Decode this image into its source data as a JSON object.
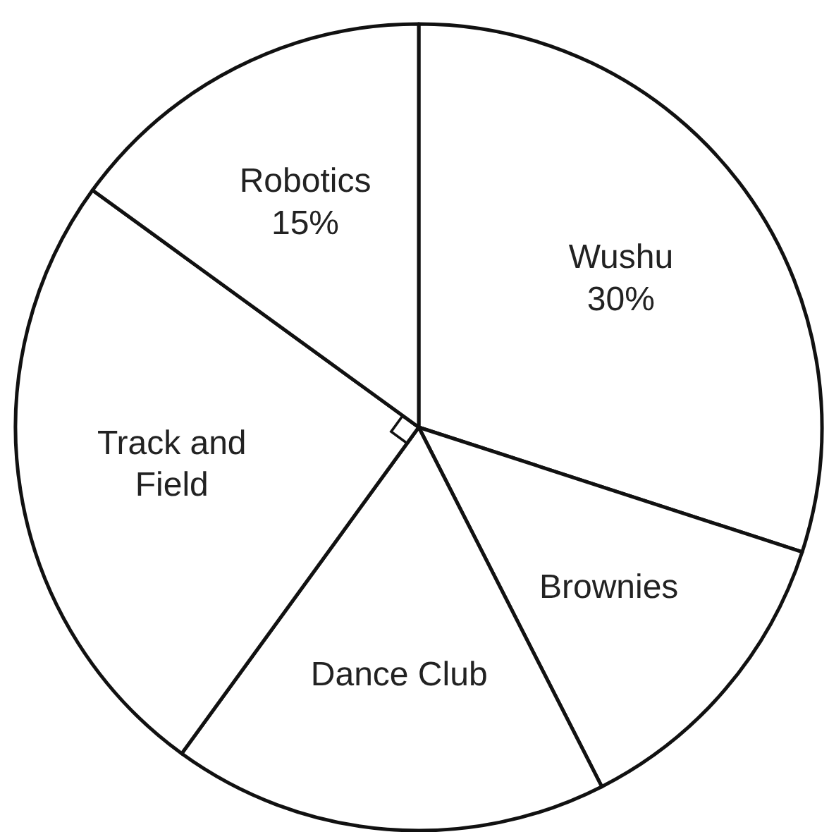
{
  "chart_data": {
    "type": "pie",
    "categories": [
      "Wushu",
      "Brownies",
      "Dance Club",
      "Track and Field",
      "Robotics"
    ],
    "values": [
      30,
      12.5,
      17.5,
      25,
      15
    ],
    "colors": [
      "#ffffff",
      "#ffffff",
      "#ffffff",
      "#ffffff",
      "#ffffff"
    ],
    "value_labels": [
      "30%",
      null,
      null,
      null,
      "15%"
    ]
  }
}
